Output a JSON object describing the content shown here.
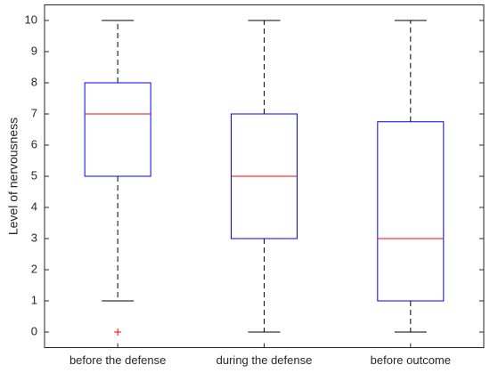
{
  "chart_data": {
    "type": "box",
    "y_label": "Level of nervousness",
    "categories": [
      "before the defense",
      "during the defense",
      "before outcome"
    ],
    "boxes": [
      {
        "min": 1,
        "q1": 5,
        "median": 7,
        "q3": 8,
        "max": 10,
        "outliers": [
          0
        ]
      },
      {
        "min": 0,
        "q1": 3,
        "median": 5,
        "q3": 7,
        "max": 10
      },
      {
        "min": 0,
        "q1": 1,
        "median": 3,
        "q3": 6.75,
        "max": 10
      }
    ],
    "ylim": [
      -0.5,
      10.5
    ],
    "yticks": [
      0,
      1,
      2,
      3,
      4,
      5,
      6,
      7,
      8,
      9,
      10
    ],
    "box_color": "#0000ff",
    "median_color": "#ff0000",
    "whisker_color": "#000000",
    "outlier_color": "#ff0000"
  }
}
